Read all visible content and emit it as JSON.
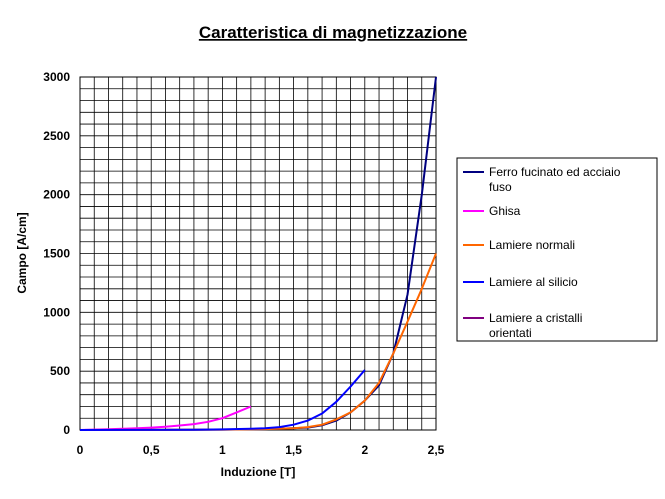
{
  "chart_data": {
    "type": "line",
    "title": "Caratteristica di magnetizzazione",
    "xlabel": "Induzione [T]",
    "ylabel": "Campo [A/cm]",
    "xlim": [
      0,
      2.5
    ],
    "ylim": [
      0,
      3000
    ],
    "xticks": [
      0,
      0.5,
      1,
      1.5,
      2,
      2.5
    ],
    "xtick_labels": [
      "0",
      "0,5",
      "1",
      "1,5",
      "2",
      "2,5"
    ],
    "yticks": [
      0,
      500,
      1000,
      1500,
      2000,
      2500,
      3000
    ],
    "ytick_labels": [
      "0",
      "500",
      "1000",
      "1500",
      "2000",
      "2500",
      "3000"
    ],
    "grid": true,
    "legend_position": "right",
    "series": [
      {
        "name": "Ferro fucinato ed acciaio fuso",
        "color": "#000080",
        "x": [
          0,
          0.5,
          1.0,
          1.2,
          1.4,
          1.6,
          1.7,
          1.8,
          1.9,
          2.0,
          2.1,
          2.2,
          2.3,
          2.4,
          2.5
        ],
        "y": [
          0,
          1,
          3,
          5,
          10,
          20,
          40,
          80,
          150,
          250,
          380,
          650,
          1150,
          2000,
          3000
        ]
      },
      {
        "name": "Ghisa",
        "color": "#ff00ff",
        "x": [
          0,
          0.1,
          0.2,
          0.3,
          0.4,
          0.5,
          0.6,
          0.7,
          0.8,
          0.9,
          1.0,
          1.1,
          1.2
        ],
        "y": [
          0,
          3,
          6,
          10,
          15,
          20,
          28,
          38,
          50,
          70,
          100,
          150,
          200
        ]
      },
      {
        "name": "Lamiere normali",
        "color": "#ff6600",
        "x": [
          0,
          1.0,
          1.3,
          1.5,
          1.6,
          1.7,
          1.8,
          1.9,
          2.0,
          2.1,
          2.2,
          2.3,
          2.4,
          2.5
        ],
        "y": [
          0,
          3,
          8,
          15,
          25,
          45,
          90,
          150,
          250,
          400,
          650,
          920,
          1200,
          1500
        ]
      },
      {
        "name": "Lamiere al silicio",
        "color": "#0000ff",
        "x": [
          0,
          0.8,
          1.0,
          1.2,
          1.3,
          1.4,
          1.5,
          1.6,
          1.7,
          1.8,
          1.9,
          2.0
        ],
        "y": [
          0,
          2,
          5,
          10,
          15,
          25,
          45,
          80,
          140,
          240,
          370,
          510
        ]
      },
      {
        "name": "Lamiere a cristalli orientati",
        "color": "#800080",
        "x": [],
        "y": []
      }
    ]
  }
}
